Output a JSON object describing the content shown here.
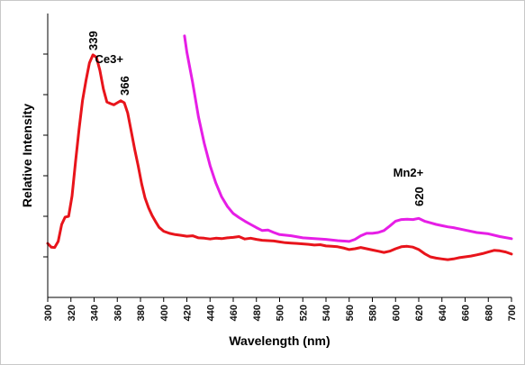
{
  "chart_data": {
    "type": "line",
    "title": "",
    "xlabel": "Wavelength (nm)",
    "ylabel": "Relative Intensity",
    "xlim": [
      300,
      700
    ],
    "ylim": [
      0,
      7
    ],
    "y_tick_labels_shown": false,
    "grid": false,
    "legend": "none",
    "x_ticks": [
      300,
      320,
      340,
      360,
      380,
      400,
      420,
      440,
      460,
      480,
      500,
      520,
      540,
      560,
      580,
      600,
      620,
      640,
      660,
      680,
      700
    ],
    "y_ticks": [
      1,
      2,
      3,
      4,
      5,
      6
    ],
    "series": [
      {
        "color": "#e8141b",
        "x": [
          300,
          303,
          306,
          309,
          312,
          315,
          318,
          321,
          324,
          327,
          330,
          333,
          336,
          339,
          342,
          345,
          348,
          351,
          354,
          357,
          360,
          363,
          366,
          369,
          372,
          375,
          378,
          381,
          384,
          387,
          390,
          393,
          396,
          400,
          405,
          410,
          415,
          420,
          425,
          430,
          435,
          440,
          445,
          450,
          455,
          460,
          465,
          470,
          475,
          480,
          485,
          490,
          495,
          500,
          505,
          510,
          515,
          520,
          525,
          530,
          535,
          540,
          545,
          550,
          555,
          560,
          565,
          570,
          575,
          580,
          585,
          590,
          595,
          600,
          605,
          610,
          615,
          620,
          625,
          630,
          635,
          640,
          645,
          650,
          655,
          660,
          665,
          670,
          675,
          680,
          685,
          690,
          695,
          700
        ],
        "y": [
          1.33,
          1.24,
          1.23,
          1.38,
          1.8,
          1.98,
          2.0,
          2.5,
          3.35,
          4.15,
          4.85,
          5.35,
          5.78,
          5.98,
          5.92,
          5.6,
          5.14,
          4.82,
          4.78,
          4.75,
          4.8,
          4.85,
          4.8,
          4.55,
          4.1,
          3.65,
          3.25,
          2.8,
          2.45,
          2.21,
          2.02,
          1.87,
          1.73,
          1.63,
          1.58,
          1.55,
          1.53,
          1.51,
          1.52,
          1.47,
          1.46,
          1.44,
          1.46,
          1.45,
          1.47,
          1.48,
          1.5,
          1.44,
          1.46,
          1.43,
          1.41,
          1.4,
          1.39,
          1.37,
          1.35,
          1.34,
          1.33,
          1.32,
          1.31,
          1.29,
          1.3,
          1.27,
          1.26,
          1.25,
          1.22,
          1.18,
          1.2,
          1.23,
          1.2,
          1.17,
          1.14,
          1.11,
          1.14,
          1.2,
          1.25,
          1.26,
          1.24,
          1.18,
          1.08,
          1.0,
          0.97,
          0.95,
          0.93,
          0.95,
          0.98,
          1.0,
          1.02,
          1.05,
          1.08,
          1.12,
          1.16,
          1.15,
          1.12,
          1.07
        ]
      },
      {
        "color": "#e61ee6",
        "x": [
          418,
          420,
          425,
          430,
          435,
          440,
          445,
          450,
          455,
          460,
          465,
          470,
          475,
          480,
          485,
          490,
          495,
          500,
          510,
          520,
          530,
          540,
          550,
          560,
          565,
          570,
          575,
          580,
          585,
          590,
          595,
          600,
          605,
          610,
          615,
          620,
          625,
          630,
          635,
          640,
          645,
          650,
          660,
          670,
          680,
          690,
          700
        ],
        "y": [
          6.45,
          6.05,
          5.3,
          4.45,
          3.8,
          3.25,
          2.82,
          2.48,
          2.24,
          2.07,
          1.97,
          1.88,
          1.8,
          1.72,
          1.65,
          1.66,
          1.6,
          1.55,
          1.52,
          1.47,
          1.45,
          1.43,
          1.4,
          1.38,
          1.43,
          1.52,
          1.58,
          1.58,
          1.6,
          1.65,
          1.76,
          1.88,
          1.92,
          1.93,
          1.92,
          1.95,
          1.88,
          1.84,
          1.8,
          1.77,
          1.74,
          1.72,
          1.66,
          1.6,
          1.57,
          1.5,
          1.45
        ]
      }
    ],
    "annotations": [
      {
        "text": "339",
        "x": 339,
        "rotated": true
      },
      {
        "text": "Ce3+",
        "x": 353
      },
      {
        "text": "366",
        "x": 366,
        "rotated": true
      },
      {
        "text": "Mn2+",
        "x": 611
      },
      {
        "text": "620",
        "x": 620,
        "rotated": true
      }
    ]
  }
}
